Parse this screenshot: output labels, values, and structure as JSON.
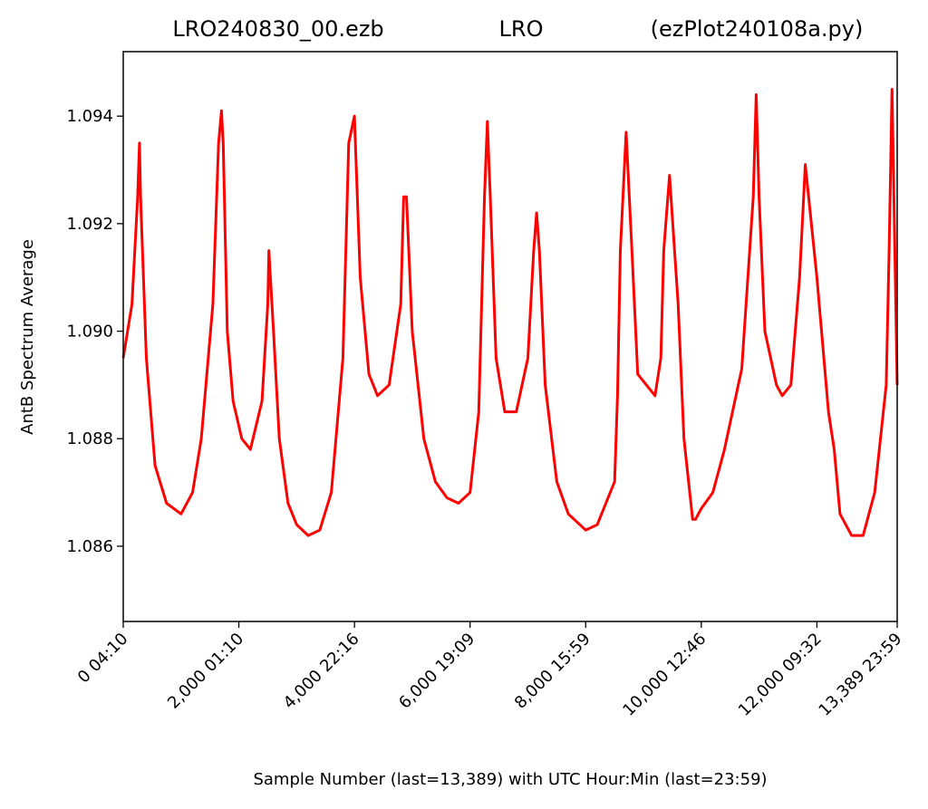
{
  "header": {
    "left": "LRO240830_00.ezb",
    "center": "LRO",
    "right": "(ezPlot240108a.py)"
  },
  "chart_data": {
    "type": "line",
    "xlabel": "Sample Number (last=13,389) with UTC Hour:Min (last=23:59)",
    "ylabel": "AntB Spectrum Average",
    "xlim": [
      0,
      13389
    ],
    "ylim": [
      1.0846,
      1.0952
    ],
    "grid": false,
    "x_ticks": [
      {
        "value": 0,
        "label": "0  04:10"
      },
      {
        "value": 2000,
        "label": "2,000  01:10"
      },
      {
        "value": 4000,
        "label": "4,000  22:16"
      },
      {
        "value": 6000,
        "label": "6,000  19:09"
      },
      {
        "value": 8000,
        "label": "8,000  15:59"
      },
      {
        "value": 10000,
        "label": "10,000  12:46"
      },
      {
        "value": 12000,
        "label": "12,000  09:32"
      },
      {
        "value": 13389,
        "label": "13,389  23:59"
      }
    ],
    "y_ticks": [
      {
        "value": 1.086,
        "label": "1.086"
      },
      {
        "value": 1.088,
        "label": "1.088"
      },
      {
        "value": 1.09,
        "label": "1.090"
      },
      {
        "value": 1.092,
        "label": "1.092"
      },
      {
        "value": 1.094,
        "label": "1.094"
      }
    ],
    "series": [
      {
        "color": "#ff0000",
        "x": [
          0,
          150,
          250,
          280,
          300,
          400,
          550,
          750,
          1000,
          1200,
          1350,
          1550,
          1650,
          1700,
          1730,
          1800,
          1900,
          2050,
          2200,
          2400,
          2500,
          2520,
          2600,
          2700,
          2850,
          3000,
          3200,
          3400,
          3600,
          3800,
          3850,
          3900,
          4000,
          4100,
          4250,
          4400,
          4600,
          4800,
          4850,
          4900,
          5000,
          5200,
          5400,
          5600,
          5800,
          6000,
          6150,
          6250,
          6300,
          6350,
          6450,
          6600,
          6800,
          7000,
          7100,
          7150,
          7200,
          7300,
          7500,
          7700,
          8000,
          8200,
          8500,
          8550,
          8600,
          8700,
          8800,
          8900,
          9200,
          9300,
          9350,
          9450,
          9600,
          9700,
          9800,
          9850,
          9900,
          9950,
          10000,
          10200,
          10400,
          10700,
          10900,
          10950,
          11000,
          11100,
          11300,
          11400,
          11550,
          11700,
          11800,
          12000,
          12200,
          12300,
          12400,
          12600,
          12800,
          13000,
          13200,
          13250,
          13300,
          13389
        ],
        "y": [
          1.0895,
          1.0905,
          1.0925,
          1.0935,
          1.0925,
          1.0895,
          1.0875,
          1.0868,
          1.0866,
          1.087,
          1.088,
          1.0905,
          1.0935,
          1.0941,
          1.0935,
          1.09,
          1.0887,
          1.088,
          1.0878,
          1.0887,
          1.0905,
          1.0915,
          1.09,
          1.088,
          1.0868,
          1.0864,
          1.0862,
          1.0863,
          1.087,
          1.0895,
          1.0915,
          1.0935,
          1.094,
          1.091,
          1.0892,
          1.0888,
          1.089,
          1.0905,
          1.0925,
          1.0925,
          1.09,
          1.088,
          1.0872,
          1.0869,
          1.0868,
          1.087,
          1.0885,
          1.0925,
          1.0939,
          1.0925,
          1.0895,
          1.0885,
          1.0885,
          1.0895,
          1.0915,
          1.0922,
          1.0915,
          1.089,
          1.0872,
          1.0866,
          1.0863,
          1.0864,
          1.0872,
          1.0888,
          1.0915,
          1.0937,
          1.0915,
          1.0892,
          1.0888,
          1.0895,
          1.0915,
          1.0929,
          1.0905,
          1.088,
          1.087,
          1.0865,
          1.0865,
          1.0866,
          1.0867,
          1.087,
          1.0878,
          1.0893,
          1.0925,
          1.0944,
          1.0925,
          1.09,
          1.089,
          1.0888,
          1.089,
          1.091,
          1.0931,
          1.091,
          1.0885,
          1.0878,
          1.0866,
          1.0862,
          1.0862,
          1.087,
          1.089,
          1.0915,
          1.0945,
          1.089
        ]
      }
    ]
  }
}
